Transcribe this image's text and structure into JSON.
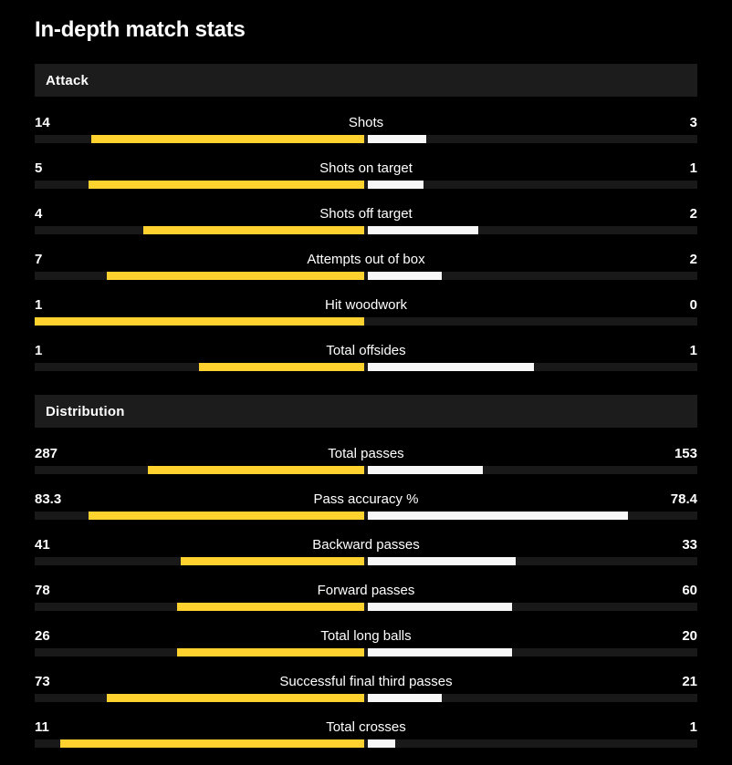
{
  "page": {
    "title": "In-depth match stats"
  },
  "colors": {
    "background": "#000000",
    "home_bar": "#ffd230",
    "away_bar": "#f7f7f7",
    "track": "#191919",
    "section_header_bg": "#1c1c1c",
    "text": "#ffffff"
  },
  "sections": [
    {
      "title": "Attack",
      "rows": [
        {
          "label": "Shots",
          "home": "14",
          "away": "3",
          "home_pct": 82.4,
          "away_pct": 17.6
        },
        {
          "label": "Shots on target",
          "home": "5",
          "away": "1",
          "home_pct": 83.3,
          "away_pct": 16.7
        },
        {
          "label": "Shots off target",
          "home": "4",
          "away": "2",
          "home_pct": 66.7,
          "away_pct": 33.3
        },
        {
          "label": "Attempts out of box",
          "home": "7",
          "away": "2",
          "home_pct": 77.8,
          "away_pct": 22.2
        },
        {
          "label": "Hit woodwork",
          "home": "1",
          "away": "0",
          "home_pct": 100,
          "away_pct": 0
        },
        {
          "label": "Total offsides",
          "home": "1",
          "away": "1",
          "home_pct": 50,
          "away_pct": 50
        }
      ]
    },
    {
      "title": "Distribution",
      "rows": [
        {
          "label": "Total passes",
          "home": "287",
          "away": "153",
          "home_pct": 65.2,
          "away_pct": 34.8
        },
        {
          "label": "Pass accuracy %",
          "home": "83.3",
          "away": "78.4",
          "home_pct": 83.3,
          "away_pct": 78.4
        },
        {
          "label": "Backward passes",
          "home": "41",
          "away": "33",
          "home_pct": 55.4,
          "away_pct": 44.6
        },
        {
          "label": "Forward passes",
          "home": "78",
          "away": "60",
          "home_pct": 56.5,
          "away_pct": 43.5
        },
        {
          "label": "Total long balls",
          "home": "26",
          "away": "20",
          "home_pct": 56.5,
          "away_pct": 43.5
        },
        {
          "label": "Successful final third passes",
          "home": "73",
          "away": "21",
          "home_pct": 77.7,
          "away_pct": 22.3
        },
        {
          "label": "Total crosses",
          "home": "11",
          "away": "1",
          "home_pct": 91.7,
          "away_pct": 8.3
        }
      ]
    }
  ],
  "chart_data": [
    {
      "type": "bar",
      "title": "Attack",
      "categories": [
        "Shots",
        "Shots on target",
        "Shots off target",
        "Attempts out of box",
        "Hit woodwork",
        "Total offsides"
      ],
      "series": [
        {
          "name": "home",
          "values": [
            14,
            5,
            4,
            7,
            1,
            1
          ]
        },
        {
          "name": "away",
          "values": [
            3,
            1,
            2,
            2,
            0,
            1
          ]
        }
      ],
      "legend_position": "none",
      "grid": false
    },
    {
      "type": "bar",
      "title": "Distribution",
      "categories": [
        "Total passes",
        "Pass accuracy %",
        "Backward passes",
        "Forward passes",
        "Total long balls",
        "Successful final third passes",
        "Total crosses"
      ],
      "series": [
        {
          "name": "home",
          "values": [
            287,
            83.3,
            41,
            78,
            26,
            73,
            11
          ]
        },
        {
          "name": "away",
          "values": [
            153,
            78.4,
            33,
            60,
            20,
            21,
            1
          ]
        }
      ],
      "legend_position": "none",
      "grid": false
    }
  ]
}
